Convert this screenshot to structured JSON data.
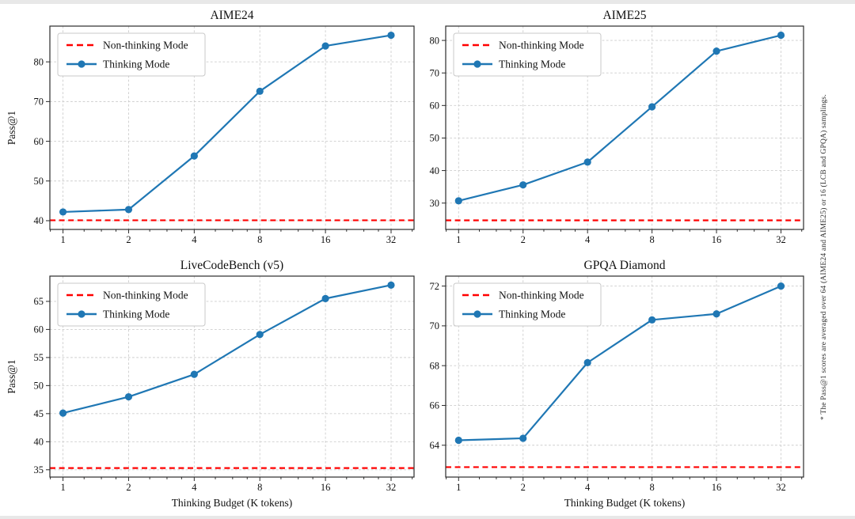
{
  "footnote": "* The Pass@1 scores are averaged over 64 (AIME24 and AIME25) or 16 (LCB and GPQA) samplings.",
  "legend": {
    "non_thinking_label": "Non-thinking Mode",
    "thinking_label": "Thinking Mode",
    "position": "top-left"
  },
  "colors": {
    "thinking_line": "#1f77b4",
    "non_thinking_line": "#ff0000",
    "grid": "#cdcdcd",
    "axis": "#2b2b2b",
    "text": "#111111",
    "legend_border": "#c8c8c8"
  },
  "y_axis_label": "Pass@1",
  "x_axis": {
    "label": "Thinking Budget (K tokens)",
    "ticks": [
      1,
      2,
      4,
      8,
      16,
      32
    ],
    "scale": "log2",
    "xlim_log2": [
      -0.2,
      5.35
    ]
  },
  "chart_data": [
    {
      "type": "line",
      "title": "AIME24",
      "x": [
        1,
        2,
        4,
        8,
        16,
        32
      ],
      "series": [
        {
          "name": "Thinking Mode",
          "values": [
            42.2,
            42.8,
            56.3,
            72.6,
            84.0,
            86.7
          ]
        }
      ],
      "baseline": {
        "name": "Non-thinking Mode",
        "value": 40.1
      },
      "y_ticks": [
        40,
        50,
        60,
        70,
        80
      ],
      "ylim": [
        37.8,
        89.0
      ],
      "grid": true
    },
    {
      "type": "line",
      "title": "AIME25",
      "x": [
        1,
        2,
        4,
        8,
        16,
        32
      ],
      "series": [
        {
          "name": "Thinking Mode",
          "values": [
            30.7,
            35.6,
            42.6,
            59.6,
            76.7,
            81.6
          ]
        }
      ],
      "baseline": {
        "name": "Non-thinking Mode",
        "value": 24.7
      },
      "y_ticks": [
        30,
        40,
        50,
        60,
        70,
        80
      ],
      "ylim": [
        21.9,
        84.4
      ],
      "grid": true
    },
    {
      "type": "line",
      "title": "LiveCodeBench (v5)",
      "x": [
        1,
        2,
        4,
        8,
        16,
        32
      ],
      "series": [
        {
          "name": "Thinking Mode",
          "values": [
            45.1,
            48.0,
            52.0,
            59.1,
            65.5,
            67.9
          ]
        }
      ],
      "baseline": {
        "name": "Non-thinking Mode",
        "value": 35.3
      },
      "y_ticks": [
        35,
        40,
        45,
        50,
        55,
        60,
        65
      ],
      "ylim": [
        33.7,
        69.5
      ],
      "grid": true
    },
    {
      "type": "line",
      "title": "GPQA Diamond",
      "x": [
        1,
        2,
        4,
        8,
        16,
        32
      ],
      "series": [
        {
          "name": "Thinking Mode",
          "values": [
            64.25,
            64.35,
            68.15,
            70.3,
            70.6,
            72.0
          ]
        }
      ],
      "baseline": {
        "name": "Non-thinking Mode",
        "value": 62.9
      },
      "y_ticks": [
        64,
        66,
        68,
        70,
        72
      ],
      "ylim": [
        62.4,
        72.5
      ],
      "grid": true
    }
  ]
}
